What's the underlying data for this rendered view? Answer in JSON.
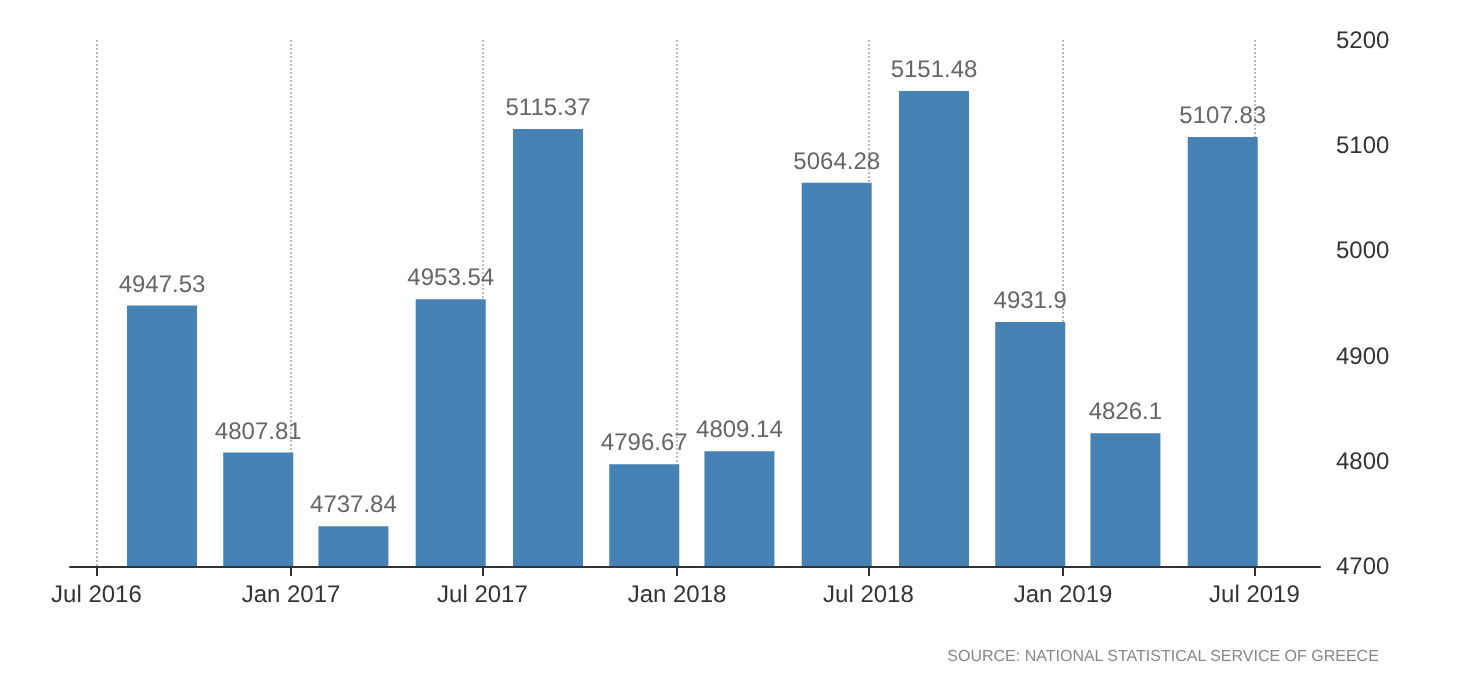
{
  "chart_data": {
    "type": "bar",
    "x": [
      "2016-09",
      "2016-12",
      "2017-03",
      "2017-06",
      "2017-09",
      "2017-12",
      "2018-03",
      "2018-06",
      "2018-09",
      "2018-12",
      "2019-03",
      "2019-06"
    ],
    "values": [
      4947.53,
      4807.81,
      4737.84,
      4953.54,
      5115.37,
      4796.67,
      4809.14,
      5064.28,
      5151.48,
      4931.9,
      4826.1,
      5107.83
    ],
    "color": "#4682b4",
    "data_labels": true,
    "xlim": [
      "2016-06-06",
      "2019-09-01"
    ],
    "xticks": [
      {
        "value": "2016-07",
        "label": "Jul 2016"
      },
      {
        "value": "2017-01",
        "label": "Jan 2017"
      },
      {
        "value": "2017-07",
        "label": "Jul 2017"
      },
      {
        "value": "2018-01",
        "label": "Jan 2018"
      },
      {
        "value": "2018-07",
        "label": "Jul 2018"
      },
      {
        "value": "2019-01",
        "label": "Jan 2019"
      },
      {
        "value": "2019-07",
        "label": "Jul 2019"
      }
    ],
    "ylim": [
      4700,
      5200
    ],
    "yticks": [
      4700,
      4800,
      4900,
      5000,
      5100,
      5200
    ],
    "grid": "x",
    "annotations": [
      "SOURCE: NATIONAL STATISTICAL SERVICE OF GREECE"
    ]
  }
}
